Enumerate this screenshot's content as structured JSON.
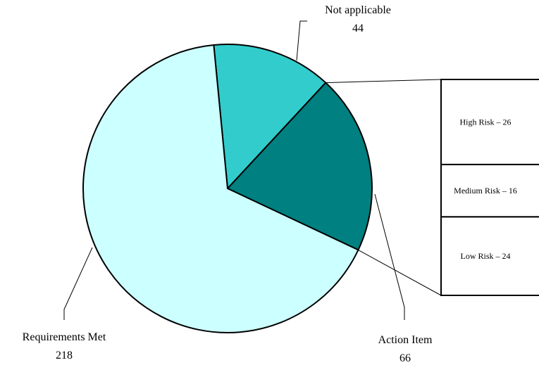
{
  "chart_data": {
    "type": "pie",
    "slices": [
      {
        "label": "Requirements Met",
        "value": 218,
        "color": "#ccffff"
      },
      {
        "label": "Not applicable",
        "value": 44,
        "color": "#33cccc"
      },
      {
        "label": "Action Item",
        "value": 66,
        "color": "#008080"
      }
    ],
    "breakdown": {
      "of": "Action Item",
      "type": "stacked-bar",
      "segments": [
        {
          "label": "High Risk – 26",
          "value": 26
        },
        {
          "label": "Medium Risk – 16",
          "value": 16
        },
        {
          "label": "Low Risk – 24",
          "value": 24
        }
      ]
    },
    "legend": "none"
  }
}
